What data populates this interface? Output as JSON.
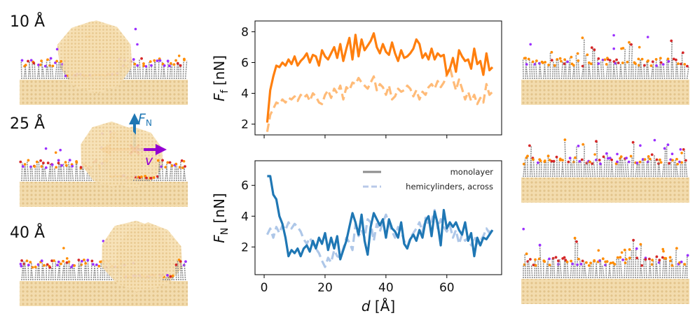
{
  "snapshots_left": [
    {
      "label": "10 Å"
    },
    {
      "label": "25 Å"
    },
    {
      "label": "40 Å"
    }
  ],
  "force_diagram": {
    "fn_label": "F",
    "fn_sub": "N",
    "ff_label": "F",
    "ff_sub": "f",
    "v_label": "v",
    "colors": {
      "normal": "#1f77b4",
      "friction": "#ff7f0e",
      "velocity": "#9400d3",
      "contact": "#e8000b"
    }
  },
  "colors": {
    "substrate": "#f1d7a6",
    "particle": "#f3d6a2",
    "chains": "#8a8a8a",
    "headgroup_orange": "#ff8c00",
    "headgroup_red": "#d62728",
    "headgroup_purple": "#9b30ff"
  },
  "chart_data": [
    {
      "type": "line",
      "panel": "top",
      "ylabel": "F_f [nN]",
      "ylabel_main": "F",
      "ylabel_sub": "f",
      "ylabel_unit": " [nN]",
      "ylim": [
        1.3,
        8.7
      ],
      "yticks": [
        "2",
        "4",
        "6",
        "8"
      ],
      "xlim": [
        -3,
        78
      ],
      "grid": false,
      "series": [
        {
          "name": "monolayer",
          "color": "#ff7f0e",
          "style": "solid",
          "x": [
            1,
            2,
            3,
            4,
            5,
            6,
            7,
            8,
            9,
            10,
            11,
            12,
            13,
            14,
            15,
            16,
            17,
            18,
            19,
            20,
            21,
            22,
            23,
            24,
            25,
            26,
            27,
            28,
            29,
            30,
            31,
            32,
            33,
            34,
            35,
            36,
            37,
            38,
            39,
            40,
            41,
            42,
            43,
            44,
            45,
            46,
            47,
            48,
            49,
            50,
            51,
            52,
            53,
            54,
            55,
            56,
            57,
            58,
            59,
            60,
            61,
            62,
            63,
            64,
            65,
            66,
            67,
            68,
            69,
            70,
            71,
            72,
            73,
            74,
            75
          ],
          "y": [
            2.1,
            4.2,
            5.1,
            5.8,
            5.7,
            6.0,
            5.8,
            6.2,
            5.9,
            6.4,
            5.8,
            6.1,
            6.3,
            6.6,
            6.0,
            6.5,
            6.4,
            5.8,
            6.8,
            6.4,
            6.2,
            6.6,
            7.0,
            6.3,
            7.2,
            6.1,
            6.9,
            7.6,
            6.2,
            7.8,
            6.4,
            7.5,
            6.8,
            7.1,
            7.4,
            7.9,
            7.0,
            6.6,
            7.2,
            6.7,
            6.5,
            7.3,
            6.6,
            6.1,
            6.8,
            6.3,
            6.4,
            6.6,
            6.9,
            7.5,
            7.2,
            6.3,
            6.6,
            6.2,
            6.9,
            6.2,
            6.6,
            6.4,
            6.5,
            5.2,
            5.6,
            6.3,
            5.4,
            6.8,
            6.4,
            6.1,
            6.2,
            5.6,
            6.9,
            5.9,
            6.1,
            5.2,
            6.6,
            5.5,
            5.7
          ]
        },
        {
          "name": "hemicylinders, across",
          "color": "#ffbb78",
          "style": "dashed",
          "x": [
            1,
            2,
            3,
            4,
            5,
            6,
            7,
            8,
            9,
            10,
            11,
            12,
            13,
            14,
            15,
            16,
            17,
            18,
            19,
            20,
            21,
            22,
            23,
            24,
            25,
            26,
            27,
            28,
            29,
            30,
            31,
            32,
            33,
            34,
            35,
            36,
            37,
            38,
            39,
            40,
            41,
            42,
            43,
            44,
            45,
            46,
            47,
            48,
            49,
            50,
            51,
            52,
            53,
            54,
            55,
            56,
            57,
            58,
            59,
            60,
            61,
            62,
            63,
            64,
            65,
            66,
            67,
            68,
            69,
            70,
            71,
            72,
            73,
            74,
            75
          ],
          "y": [
            1.5,
            2.6,
            3.0,
            3.4,
            3.3,
            3.6,
            3.4,
            3.7,
            3.6,
            3.8,
            3.5,
            3.9,
            3.7,
            3.9,
            3.5,
            4.0,
            3.8,
            3.4,
            3.3,
            3.9,
            4.2,
            3.7,
            4.3,
            4.0,
            4.5,
            3.6,
            4.4,
            4.2,
            4.7,
            4.6,
            5.0,
            4.7,
            4.5,
            4.3,
            4.7,
            5.1,
            4.2,
            4.6,
            4.4,
            3.9,
            4.5,
            3.6,
            3.8,
            4.3,
            4.1,
            4.2,
            4.5,
            4.3,
            3.8,
            4.2,
            3.6,
            4.1,
            3.9,
            4.4,
            4.6,
            4.3,
            4.8,
            4.4,
            4.7,
            5.2,
            5.7,
            4.9,
            4.2,
            4.9,
            4.3,
            3.6,
            4.1,
            3.5,
            3.9,
            3.3,
            3.7,
            3.4,
            4.6,
            3.9,
            4.1
          ]
        }
      ]
    },
    {
      "type": "line",
      "panel": "bottom",
      "xlabel": "d [Å]",
      "xlabel_main": "d",
      "xlabel_unit": " [Å]",
      "ylabel": "F_N [nN]",
      "ylabel_main": "F",
      "ylabel_sub": "N",
      "ylabel_unit": " [nN]",
      "ylim": [
        0.2,
        7.6
      ],
      "yticks": [
        "2",
        "4",
        "6"
      ],
      "xlim": [
        -3,
        78
      ],
      "xticks": [
        "0",
        "20",
        "40",
        "60"
      ],
      "legend": "top-right",
      "grid": false,
      "legend_entries": [
        {
          "name": "monolayer",
          "color": "#8c8c8c",
          "style": "solid"
        },
        {
          "name": "hemicylinders, across",
          "color": "#b8c8e8",
          "style": "dashed"
        }
      ],
      "series": [
        {
          "name": "monolayer",
          "color": "#1f77b4",
          "style": "solid",
          "x": [
            1,
            2,
            3,
            4,
            5,
            6,
            7,
            8,
            9,
            10,
            11,
            12,
            13,
            14,
            15,
            16,
            17,
            18,
            19,
            20,
            21,
            22,
            23,
            24,
            25,
            26,
            27,
            28,
            29,
            30,
            31,
            32,
            33,
            34,
            35,
            36,
            37,
            38,
            39,
            40,
            41,
            42,
            43,
            44,
            45,
            46,
            47,
            48,
            49,
            50,
            51,
            52,
            53,
            54,
            55,
            56,
            57,
            58,
            59,
            60,
            61,
            62,
            63,
            64,
            65,
            66,
            67,
            68,
            69,
            70,
            71,
            72,
            73,
            74,
            75
          ],
          "y": [
            6.6,
            6.6,
            5.4,
            5.1,
            4.0,
            3.5,
            2.6,
            1.4,
            1.8,
            1.6,
            1.9,
            1.4,
            1.9,
            2.1,
            1.7,
            2.4,
            1.9,
            2.6,
            2.2,
            2.9,
            1.8,
            2.6,
            1.9,
            2.7,
            1.2,
            1.8,
            2.4,
            3.3,
            4.2,
            3.6,
            2.8,
            4.1,
            2.4,
            1.5,
            3.3,
            4.2,
            3.8,
            3.4,
            3.8,
            2.6,
            3.8,
            3.2,
            3.0,
            2.6,
            3.6,
            2.2,
            1.9,
            2.5,
            2.8,
            2.4,
            3.1,
            2.6,
            3.7,
            4.0,
            2.7,
            4.3,
            3.5,
            2.1,
            4.4,
            3.2,
            3.6,
            3.3,
            3.6,
            3.1,
            2.8,
            3.6,
            2.4,
            2.9,
            1.4,
            2.6,
            2.1,
            2.6,
            2.5,
            2.8,
            3.1
          ]
        },
        {
          "name": "hemicylinders, across",
          "color": "#aec7e8",
          "style": "dashed",
          "x": [
            1,
            2,
            3,
            4,
            5,
            6,
            7,
            8,
            9,
            10,
            11,
            12,
            13,
            14,
            15,
            16,
            17,
            18,
            19,
            20,
            21,
            22,
            23,
            24,
            25,
            26,
            27,
            28,
            29,
            30,
            31,
            32,
            33,
            34,
            35,
            36,
            37,
            38,
            39,
            40,
            41,
            42,
            43,
            44,
            45,
            46,
            47,
            48,
            49,
            50,
            51,
            52,
            53,
            54,
            55,
            56,
            57,
            58,
            59,
            60,
            61,
            62,
            63,
            64,
            65,
            66,
            67,
            68,
            69,
            70,
            71,
            72,
            73,
            74,
            75
          ],
          "y": [
            2.8,
            3.2,
            2.6,
            3.3,
            2.9,
            3.4,
            3.1,
            3.6,
            3.2,
            3.5,
            3.3,
            3.0,
            2.5,
            2.2,
            2.6,
            2.2,
            1.9,
            1.6,
            1.1,
            0.7,
            1.3,
            1.0,
            1.8,
            1.4,
            1.3,
            1.9,
            2.6,
            2.3,
            1.8,
            3.5,
            2.7,
            3.1,
            2.6,
            3.8,
            3.6,
            2.4,
            3.5,
            3.0,
            3.6,
            4.1,
            3.5,
            3.0,
            2.6,
            3.3,
            3.0,
            2.4,
            2.0,
            2.6,
            2.9,
            3.2,
            3.6,
            3.0,
            3.9,
            3.4,
            3.7,
            4.4,
            3.2,
            3.8,
            3.3,
            3.0,
            3.4,
            2.6,
            3.1,
            2.2,
            2.8,
            2.4,
            2.6,
            2.1,
            2.7,
            2.2,
            2.4,
            2.7,
            3.2,
            2.9,
            3.3
          ]
        }
      ]
    }
  ]
}
